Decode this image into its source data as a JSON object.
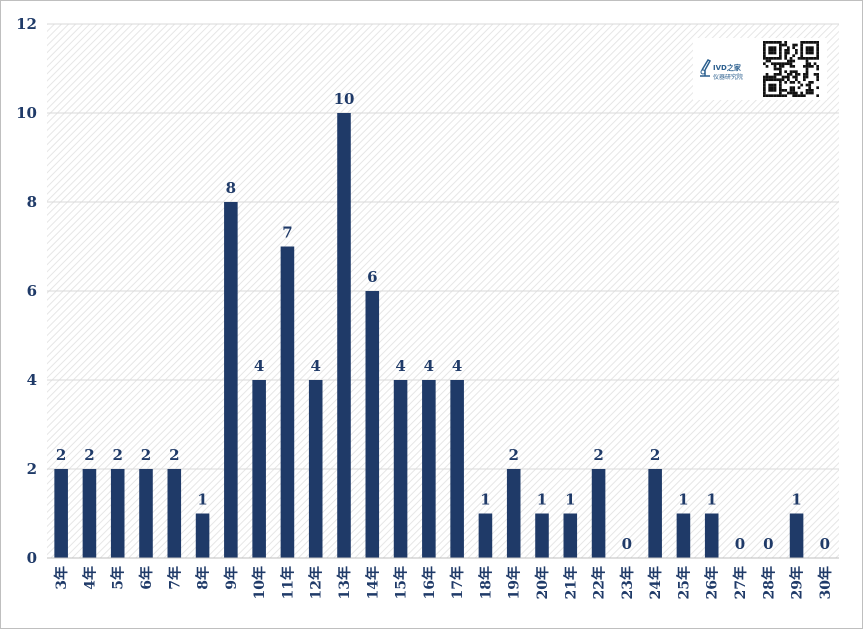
{
  "chart_data": {
    "type": "bar",
    "categories": [
      "3年",
      "4年",
      "5年",
      "6年",
      "7年",
      "8年",
      "9年",
      "10年",
      "11年",
      "12年",
      "13年",
      "14年",
      "15年",
      "16年",
      "17年",
      "18年",
      "19年",
      "20年",
      "21年",
      "22年",
      "23年",
      "24年",
      "25年",
      "26年",
      "27年",
      "28年",
      "29年",
      "30年"
    ],
    "values": [
      2,
      2,
      2,
      2,
      2,
      1,
      8,
      4,
      7,
      4,
      10,
      6,
      4,
      4,
      4,
      1,
      2,
      1,
      1,
      2,
      0,
      2,
      1,
      1,
      0,
      0,
      1,
      0
    ],
    "ylim": [
      0,
      12
    ],
    "y_ticks": [
      0,
      2,
      4,
      6,
      8,
      10,
      12
    ],
    "grid": true,
    "data_labels": true,
    "colors": {
      "bar": "#1f3a68",
      "text": "#1f3a68",
      "grid": "#d9d9d9",
      "hatch": "#e6e6e6"
    }
  },
  "logo": {
    "brand": "IVD之家",
    "subtitle": "仪器研究院",
    "mark_icon": "microscope-icon",
    "qr_icon": "qr-code-icon"
  }
}
